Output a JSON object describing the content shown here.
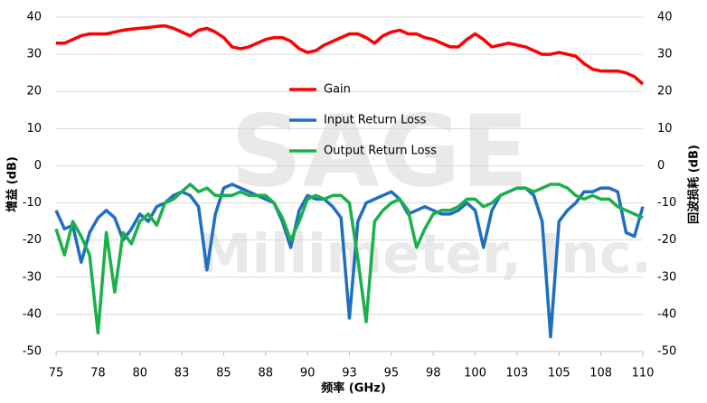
{
  "chart_data": {
    "type": "line",
    "xlabel": "频率 (GHz)",
    "ylabel": "增益 (dB)",
    "y2label": "回波损耗 (dB)",
    "watermark": [
      "SAGE",
      "Millimeter, Inc."
    ],
    "xlim": [
      75,
      110
    ],
    "xticks": [
      75,
      {
        "value": 77.5,
        "label": "78"
      },
      80,
      {
        "value": 82.5,
        "label": "83"
      },
      85,
      {
        "value": 87.5,
        "label": "88"
      },
      90,
      {
        "value": 92.5,
        "label": "93"
      },
      95,
      {
        "value": 97.5,
        "label": "98"
      },
      100,
      {
        "value": 102.5,
        "label": "103"
      },
      105,
      {
        "value": 107.5,
        "label": "108"
      },
      110
    ],
    "ylim": [
      -50,
      40
    ],
    "yticks": [
      40,
      30,
      20,
      10,
      0,
      -10,
      -20,
      -30,
      -40,
      -50
    ],
    "y2lim": [
      -50,
      40
    ],
    "y2ticks": [
      40,
      30,
      20,
      10,
      0,
      -10,
      -20,
      -30,
      -40,
      -50
    ],
    "grid": true,
    "legend": "center",
    "x": [
      75,
      75.5,
      76,
      76.5,
      77,
      77.5,
      78,
      78.5,
      79,
      79.5,
      80,
      80.5,
      81,
      81.5,
      82,
      82.5,
      83,
      83.5,
      84,
      84.5,
      85,
      85.5,
      86,
      86.5,
      87,
      87.5,
      88,
      88.5,
      89,
      89.5,
      90,
      90.5,
      91,
      91.5,
      92,
      92.5,
      93,
      93.5,
      94,
      94.5,
      95,
      95.5,
      96,
      96.5,
      97,
      97.5,
      98,
      98.5,
      99,
      99.5,
      100,
      100.5,
      101,
      101.5,
      102,
      102.5,
      103,
      103.5,
      104,
      104.5,
      105,
      105.5,
      106,
      106.5,
      107,
      107.5,
      108,
      108.5,
      109,
      109.5,
      110
    ],
    "series": [
      {
        "name": "Gain",
        "color": "#ff0000",
        "values": [
          33,
          33,
          34,
          35,
          35.5,
          35.5,
          35.5,
          36,
          36.5,
          36.8,
          37,
          37.2,
          37.5,
          37.7,
          37,
          36,
          35,
          36.5,
          37,
          36,
          34.5,
          32,
          31.5,
          32,
          33,
          34,
          34.5,
          34.5,
          33.5,
          31.5,
          30.5,
          31,
          32.5,
          33.5,
          34.5,
          35.5,
          35.5,
          34.5,
          33,
          35,
          36,
          36.5,
          35.5,
          35.5,
          34.5,
          34,
          33,
          32,
          32,
          34,
          35.5,
          34,
          32,
          32.5,
          33,
          32.5,
          32,
          31,
          30,
          30,
          30.5,
          30,
          29.5,
          27.5,
          26,
          25.5,
          25.5,
          25.5,
          25,
          24,
          22
        ]
      },
      {
        "name": "Input Return Loss",
        "color": "#1f6fbf",
        "axis": "y2",
        "values": [
          -12,
          -17,
          -16,
          -26,
          -18,
          -14,
          -12,
          -14,
          -20,
          -17,
          -13,
          -15,
          -11,
          -10,
          -8,
          -7,
          -8,
          -11,
          -28,
          -13,
          -6,
          -5,
          -6,
          -7,
          -8,
          -9,
          -10,
          -15,
          -22,
          -12,
          -8,
          -9,
          -9,
          -11,
          -14,
          -41,
          -15,
          -10,
          -9,
          -8,
          -7,
          -9,
          -13,
          -12,
          -11,
          -12,
          -13,
          -13,
          -12,
          -10,
          -12,
          -22,
          -12,
          -8,
          -7,
          -6,
          -6,
          -8,
          -15,
          -46,
          -15,
          -12,
          -10,
          -7,
          -7,
          -6,
          -6,
          -7,
          -18,
          -19,
          -11
        ]
      },
      {
        "name": "Output Return Loss",
        "color": "#1ab04a",
        "axis": "y2",
        "values": [
          -17,
          -24,
          -15,
          -19,
          -24,
          -45,
          -18,
          -34,
          -18,
          -21,
          -15,
          -13,
          -16,
          -10,
          -9,
          -7,
          -5,
          -7,
          -6,
          -8,
          -8,
          -8,
          -7,
          -8,
          -8,
          -8,
          -10,
          -14,
          -20,
          -15,
          -9,
          -8,
          -9,
          -8,
          -8,
          -10,
          -25,
          -42,
          -15,
          -12,
          -10,
          -9,
          -12,
          -22,
          -17,
          -13,
          -12,
          -12,
          -11,
          -9,
          -9,
          -11,
          -10,
          -8,
          -7,
          -6,
          -6,
          -7,
          -6,
          -5,
          -5,
          -6,
          -8,
          -9,
          -8,
          -9,
          -9,
          -11,
          -12,
          -13,
          -14
        ]
      }
    ]
  }
}
